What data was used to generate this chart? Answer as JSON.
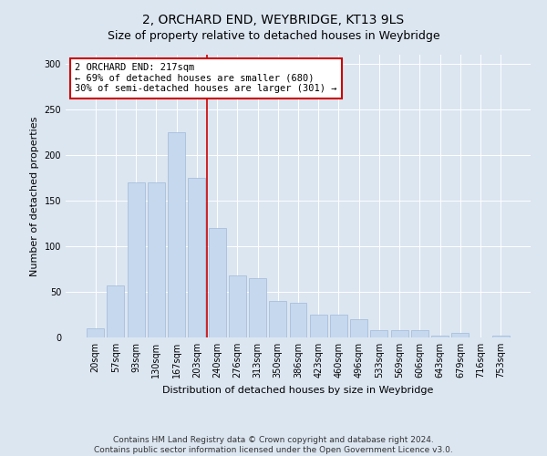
{
  "title": "2, ORCHARD END, WEYBRIDGE, KT13 9LS",
  "subtitle": "Size of property relative to detached houses in Weybridge",
  "xlabel": "Distribution of detached houses by size in Weybridge",
  "ylabel": "Number of detached properties",
  "bar_labels": [
    "20sqm",
    "57sqm",
    "93sqm",
    "130sqm",
    "167sqm",
    "203sqm",
    "240sqm",
    "276sqm",
    "313sqm",
    "350sqm",
    "386sqm",
    "423sqm",
    "460sqm",
    "496sqm",
    "533sqm",
    "569sqm",
    "606sqm",
    "643sqm",
    "679sqm",
    "716sqm",
    "753sqm"
  ],
  "bar_values": [
    10,
    57,
    170,
    170,
    225,
    175,
    120,
    68,
    65,
    40,
    38,
    25,
    25,
    20,
    8,
    8,
    8,
    2,
    5,
    0,
    2
  ],
  "bar_color": "#c5d8ee",
  "bar_edge_color": "#a0b8d8",
  "vline_x": 5.5,
  "vline_color": "#cc0000",
  "annotation_text": "2 ORCHARD END: 217sqm\n← 69% of detached houses are smaller (680)\n30% of semi-detached houses are larger (301) →",
  "annotation_box_color": "#cc0000",
  "ylim": [
    0,
    310
  ],
  "yticks": [
    0,
    50,
    100,
    150,
    200,
    250,
    300
  ],
  "background_color": "#dce6f1",
  "plot_bg_color": "#dce6f1",
  "footer_line1": "Contains HM Land Registry data © Crown copyright and database right 2024.",
  "footer_line2": "Contains public sector information licensed under the Open Government Licence v3.0.",
  "title_fontsize": 10,
  "xlabel_fontsize": 8,
  "ylabel_fontsize": 8,
  "tick_fontsize": 7,
  "annotation_fontsize": 7.5,
  "footer_fontsize": 6.5
}
